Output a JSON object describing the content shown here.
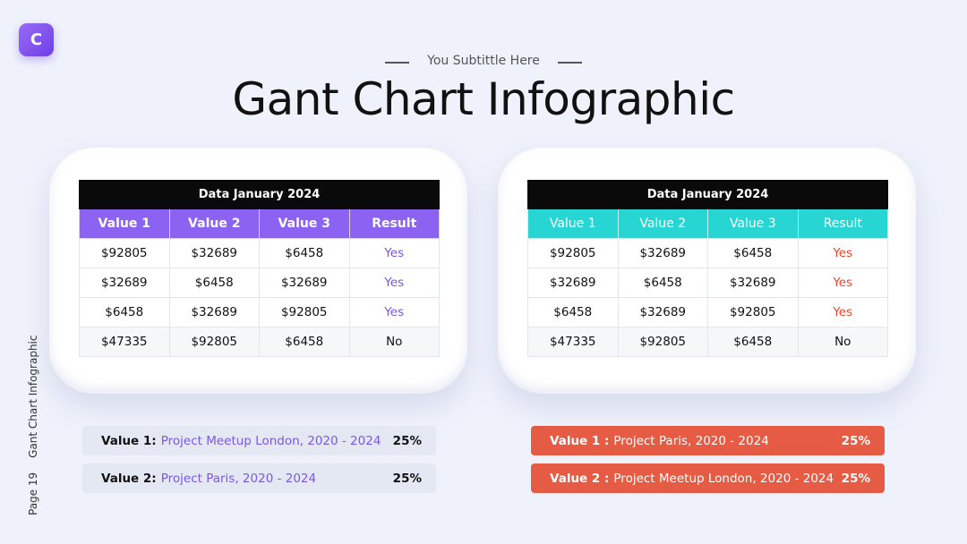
{
  "logo": "C",
  "header": {
    "subtitle": "You Subtittle Here",
    "title": "Gant Chart Infographic"
  },
  "side": {
    "page": "Page 19",
    "label": "Gant Chart Infographic"
  },
  "tables": [
    {
      "title": "Data January 2024",
      "columns": [
        "Value 1",
        "Value 2",
        "Value 3",
        "Result"
      ],
      "rows": [
        [
          "$92805",
          "$32689",
          "$6458",
          "Yes"
        ],
        [
          "$32689",
          "$6458",
          "$32689",
          "Yes"
        ],
        [
          "$6458",
          "$32689",
          "$92805",
          "Yes"
        ],
        [
          "$47335",
          "$92805",
          "$6458",
          "No"
        ]
      ]
    },
    {
      "title": "Data January 2024",
      "columns": [
        "Value 1",
        "Value 2",
        "Value 3",
        "Result"
      ],
      "rows": [
        [
          "$92805",
          "$32689",
          "$6458",
          "Yes"
        ],
        [
          "$32689",
          "$6458",
          "$32689",
          "Yes"
        ],
        [
          "$6458",
          "$32689",
          "$92805",
          "Yes"
        ],
        [
          "$47335",
          "$92805",
          "$6458",
          "No"
        ]
      ]
    }
  ],
  "legends": [
    [
      {
        "label": "Value 1:",
        "text": "Project Meetup London, 2020 - 2024",
        "value": "25%"
      },
      {
        "label": "Value 2:",
        "text": "Project Paris, 2020 - 2024",
        "value": "25%"
      }
    ],
    [
      {
        "label": "Value 1 :",
        "text": "Project Paris, 2020 - 2024",
        "value": "25%"
      },
      {
        "label": "Value 2 :",
        "text": "Project Meetup London, 2020 - 2024",
        "value": "25%"
      }
    ]
  ]
}
